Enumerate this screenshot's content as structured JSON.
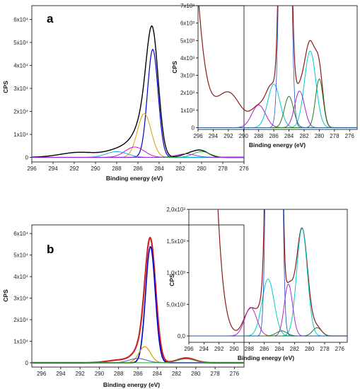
{
  "chart_data": [
    {
      "id": "a-main",
      "type": "line",
      "panel_label": "a",
      "xlabel": "Binding energy (eV)",
      "ylabel": "CPS",
      "xlim": [
        296,
        276
      ],
      "ylim": [
        -2000,
        66000
      ],
      "xticks": [
        296,
        294,
        292,
        290,
        288,
        286,
        284,
        282,
        280,
        278,
        276
      ],
      "yticks": [
        0,
        10000,
        20000,
        30000,
        40000,
        50000,
        60000
      ],
      "ytick_labels": [
        "0",
        "1x10⁴",
        "2x10⁴",
        "3x10⁴",
        "4x10⁴",
        "5x10⁴",
        "6x10⁴"
      ],
      "series": [
        {
          "color": "#000000",
          "width": 1.4,
          "peaks": [
            [
              284.6,
              44000,
              0.55
            ],
            [
              285.2,
              16000,
              0.75
            ],
            [
              286.3,
              5000,
              0.9
            ],
            [
              287.8,
              3000,
              1.2
            ],
            [
              291.5,
              2200,
              1.8
            ],
            [
              281.1,
              1500,
              0.8
            ],
            [
              280.0,
              2500,
              0.7
            ]
          ]
        },
        {
          "color": "#0000cc",
          "width": 1.2,
          "peaks": [
            [
              284.6,
              47000,
              0.5
            ]
          ]
        },
        {
          "color": "#d9a000",
          "width": 1.0,
          "peaks": [
            [
              285.4,
              19000,
              0.65
            ]
          ]
        },
        {
          "color": "#cc00cc",
          "width": 0.9,
          "peaks": [
            [
              286.3,
              4500,
              0.9
            ]
          ]
        },
        {
          "color": "#00aadd",
          "width": 0.9,
          "peaks": [
            [
              288.0,
              2500,
              1.0
            ]
          ]
        },
        {
          "color": "#22aa22",
          "width": 0.9,
          "peaks": [
            [
              280.0,
              2500,
              0.8
            ]
          ]
        },
        {
          "color": "#8a2be2",
          "width": 0.9,
          "peaks": [
            [
              281.5,
              1500,
              0.9
            ]
          ]
        }
      ]
    },
    {
      "id": "a-inset",
      "type": "line",
      "xlabel": "Binding energy (eV)",
      "ylabel": "CPS",
      "xlim": [
        296,
        275
      ],
      "ylim": [
        -100,
        7000
      ],
      "xticks": [
        296,
        294,
        292,
        290,
        288,
        286,
        284,
        282,
        280,
        278,
        276
      ],
      "yticks": [
        0,
        1000,
        2000,
        3000,
        4000,
        5000,
        6000,
        7000
      ],
      "ytick_labels": [
        "0",
        "1x10³",
        "2x10³",
        "3x10³",
        "4x10³",
        "5x10³",
        "6x10³",
        "7x10³"
      ],
      "series": [
        {
          "color": "#8b1a1a",
          "width": 1.2,
          "peaks": [
            [
              292.0,
              2000,
              1.6
            ],
            [
              288.0,
              1100,
              1.0
            ],
            [
              286.2,
              2200,
              0.8
            ],
            [
              284.0,
              1500,
              0.7
            ],
            [
              282.6,
              1800,
              0.7
            ],
            [
              281.2,
              4600,
              0.7
            ],
            [
              280.0,
              2800,
              0.5
            ],
            [
              300.0,
              40000,
              2.2
            ],
            [
              284.5,
              40000,
              0.5
            ]
          ]
        },
        {
          "color": "#00cccc",
          "width": 1.0,
          "peaks": [
            [
              286.0,
              2500,
              0.8
            ]
          ]
        },
        {
          "color": "#00cccc",
          "width": 1.0,
          "peaks": [
            [
              281.2,
              4400,
              0.75
            ]
          ]
        },
        {
          "color": "#aa22cc",
          "width": 1.0,
          "peaks": [
            [
              288.0,
              1300,
              0.9
            ]
          ]
        },
        {
          "color": "#aa22cc",
          "width": 1.0,
          "peaks": [
            [
              282.6,
              2100,
              0.65
            ]
          ]
        },
        {
          "color": "#227722",
          "width": 1.0,
          "peaks": [
            [
              284.0,
              1800,
              0.6
            ]
          ]
        },
        {
          "color": "#227722",
          "width": 1.0,
          "peaks": [
            [
              280.0,
              2800,
              0.5
            ]
          ]
        },
        {
          "color": "#2255cc",
          "width": 0.8,
          "peaks": [
            [
              284.5,
              40000,
              0.5
            ]
          ]
        }
      ]
    },
    {
      "id": "b-main",
      "type": "line",
      "panel_label": "b",
      "xlabel": "Binding energy (eV)",
      "ylabel": "CPS",
      "xlim": [
        297,
        275
      ],
      "ylim": [
        -2000,
        64000
      ],
      "xticks": [
        296,
        294,
        292,
        290,
        288,
        286,
        284,
        282,
        280,
        278,
        276
      ],
      "yticks": [
        0,
        10000,
        20000,
        30000,
        40000,
        50000,
        60000
      ],
      "ytick_labels": [
        "0",
        "1x10⁴",
        "2x10⁴",
        "3x10⁴",
        "4x10⁴",
        "5x10⁴",
        "6x10⁴"
      ],
      "series": [
        {
          "color": "#cc2222",
          "width": 2.2,
          "peaks": [
            [
              284.7,
              52000,
              0.55
            ],
            [
              285.3,
              7000,
              0.8
            ],
            [
              286.0,
              2000,
              0.9
            ],
            [
              288.0,
              1200,
              1.2
            ],
            [
              281.0,
              2200,
              0.9
            ]
          ]
        },
        {
          "color": "#0000cc",
          "width": 1.6,
          "peaks": [
            [
              284.7,
              54000,
              0.5
            ]
          ]
        },
        {
          "color": "#d9a000",
          "width": 1.3,
          "peaks": [
            [
              285.3,
              7500,
              0.6
            ]
          ]
        },
        {
          "color": "#3355cc",
          "width": 1.0,
          "peaks": [
            [
              286.0,
              2000,
              0.9
            ]
          ]
        },
        {
          "color": "#22aa22",
          "width": 1.0,
          "peaks": [
            [
              281.0,
              1800,
              0.9
            ]
          ]
        }
      ]
    },
    {
      "id": "b-inset",
      "type": "line",
      "xlabel": "Binding energy (eV)",
      "ylabel": "CPS",
      "xlim": [
        296,
        275
      ],
      "ylim": [
        -100,
        2000
      ],
      "xticks": [
        296,
        294,
        292,
        290,
        288,
        286,
        284,
        282,
        280,
        278,
        276
      ],
      "yticks": [
        0,
        500,
        1000,
        1500,
        2000
      ],
      "ytick_labels": [
        "0,0",
        "5,0x10²",
        "1,0x10³",
        "1,5x10³",
        "2,0x10³"
      ],
      "series": [
        {
          "color": "#8b1a1a",
          "width": 1.2,
          "peaks": [
            [
              287.8,
              430,
              0.9
            ],
            [
              285.5,
              850,
              0.8
            ],
            [
              282.8,
              720,
              0.6
            ],
            [
              281.0,
              1700,
              0.75
            ],
            [
              279.0,
              130,
              0.6
            ],
            [
              296.0,
              20000,
              1.8
            ],
            [
              284.7,
              40000,
              0.5
            ]
          ]
        },
        {
          "color": "#00cccc",
          "width": 1.0,
          "peaks": [
            [
              285.5,
              900,
              0.8
            ]
          ]
        },
        {
          "color": "#00cccc",
          "width": 1.0,
          "peaks": [
            [
              281.0,
              1700,
              0.7
            ]
          ]
        },
        {
          "color": "#bb22cc",
          "width": 1.0,
          "peaks": [
            [
              287.8,
              450,
              0.8
            ]
          ]
        },
        {
          "color": "#bb22cc",
          "width": 1.0,
          "peaks": [
            [
              282.8,
              820,
              0.55
            ]
          ]
        },
        {
          "color": "#227722",
          "width": 1.0,
          "peaks": [
            [
              283.7,
              80,
              0.7
            ]
          ]
        },
        {
          "color": "#227722",
          "width": 1.0,
          "peaks": [
            [
              279.0,
              130,
              0.6
            ]
          ]
        },
        {
          "color": "#2244bb",
          "width": 0.8,
          "peaks": [
            [
              284.7,
              40000,
              0.5
            ]
          ]
        }
      ]
    }
  ]
}
